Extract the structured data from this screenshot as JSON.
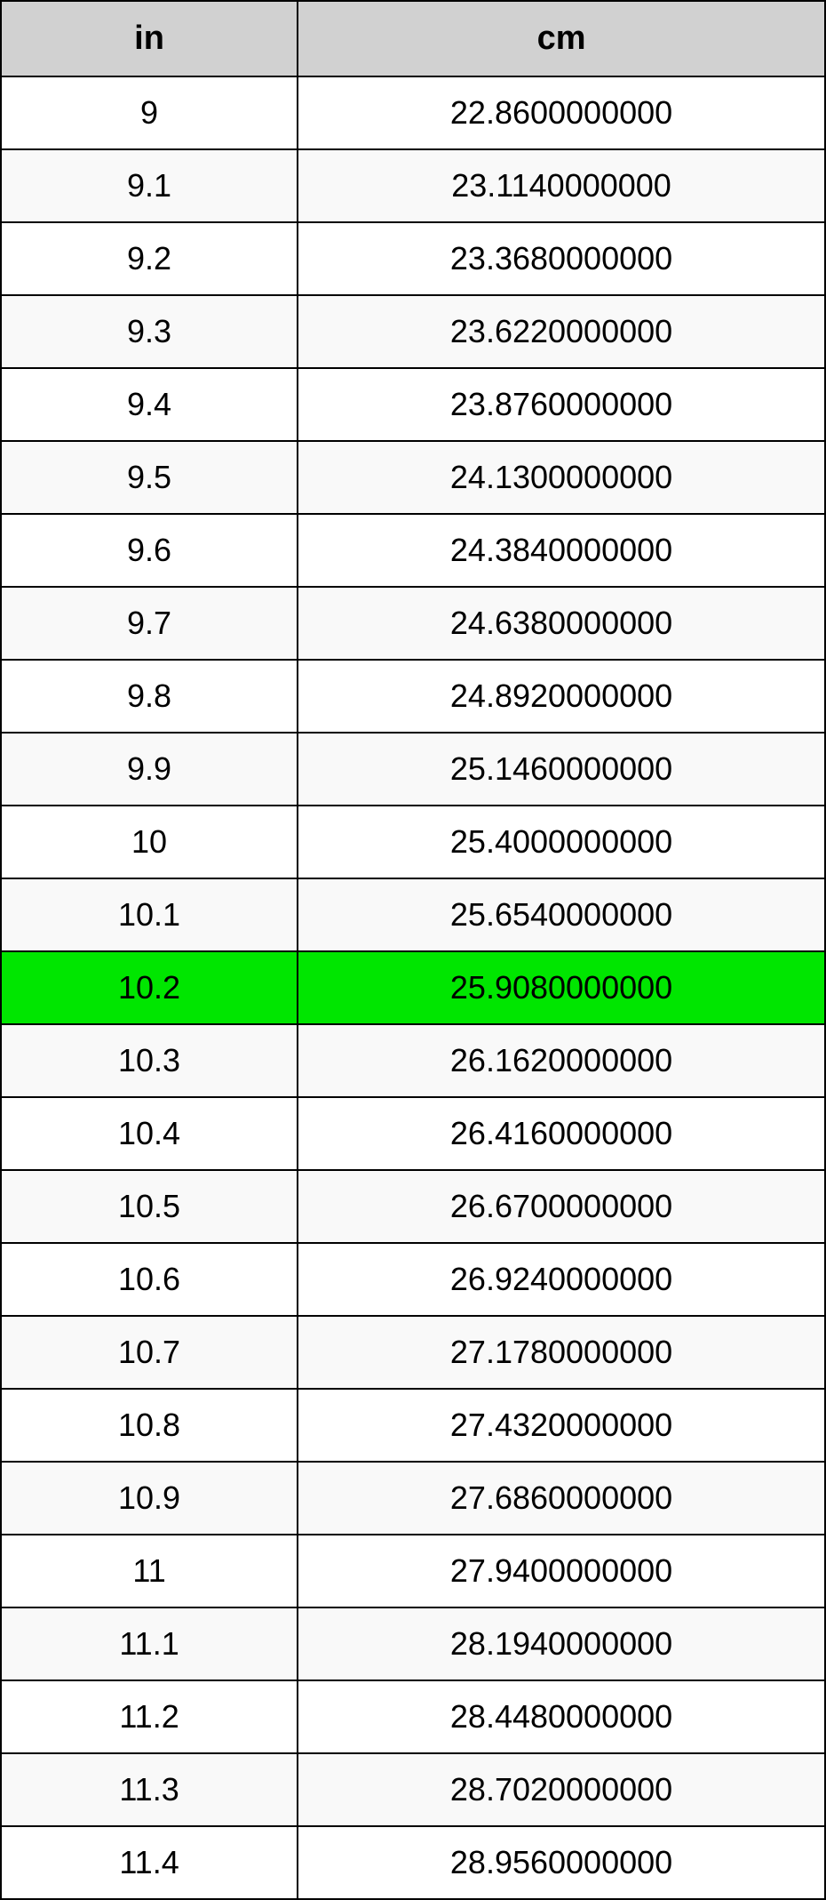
{
  "table": {
    "columns": [
      {
        "key": "in",
        "label": "in",
        "width_pct": 36
      },
      {
        "key": "cm",
        "label": "cm",
        "width_pct": 64
      }
    ],
    "header_bg": "#d1d1d1",
    "header_fontsize": 38,
    "header_fontweight": "bold",
    "cell_fontsize": 36,
    "border_color": "#000000",
    "border_width": 2,
    "row_bg_even": "#ffffff",
    "row_bg_odd": "#f9f9f9",
    "highlight_bg": "#00e600",
    "highlight_index": 12,
    "rows": [
      {
        "in": "9",
        "cm": "22.8600000000"
      },
      {
        "in": "9.1",
        "cm": "23.1140000000"
      },
      {
        "in": "9.2",
        "cm": "23.3680000000"
      },
      {
        "in": "9.3",
        "cm": "23.6220000000"
      },
      {
        "in": "9.4",
        "cm": "23.8760000000"
      },
      {
        "in": "9.5",
        "cm": "24.1300000000"
      },
      {
        "in": "9.6",
        "cm": "24.3840000000"
      },
      {
        "in": "9.7",
        "cm": "24.6380000000"
      },
      {
        "in": "9.8",
        "cm": "24.8920000000"
      },
      {
        "in": "9.9",
        "cm": "25.1460000000"
      },
      {
        "in": "10",
        "cm": "25.4000000000"
      },
      {
        "in": "10.1",
        "cm": "25.6540000000"
      },
      {
        "in": "10.2",
        "cm": "25.9080000000"
      },
      {
        "in": "10.3",
        "cm": "26.1620000000"
      },
      {
        "in": "10.4",
        "cm": "26.4160000000"
      },
      {
        "in": "10.5",
        "cm": "26.6700000000"
      },
      {
        "in": "10.6",
        "cm": "26.9240000000"
      },
      {
        "in": "10.7",
        "cm": "27.1780000000"
      },
      {
        "in": "10.8",
        "cm": "27.4320000000"
      },
      {
        "in": "10.9",
        "cm": "27.6860000000"
      },
      {
        "in": "11",
        "cm": "27.9400000000"
      },
      {
        "in": "11.1",
        "cm": "28.1940000000"
      },
      {
        "in": "11.2",
        "cm": "28.4480000000"
      },
      {
        "in": "11.3",
        "cm": "28.7020000000"
      },
      {
        "in": "11.4",
        "cm": "28.9560000000"
      }
    ]
  }
}
